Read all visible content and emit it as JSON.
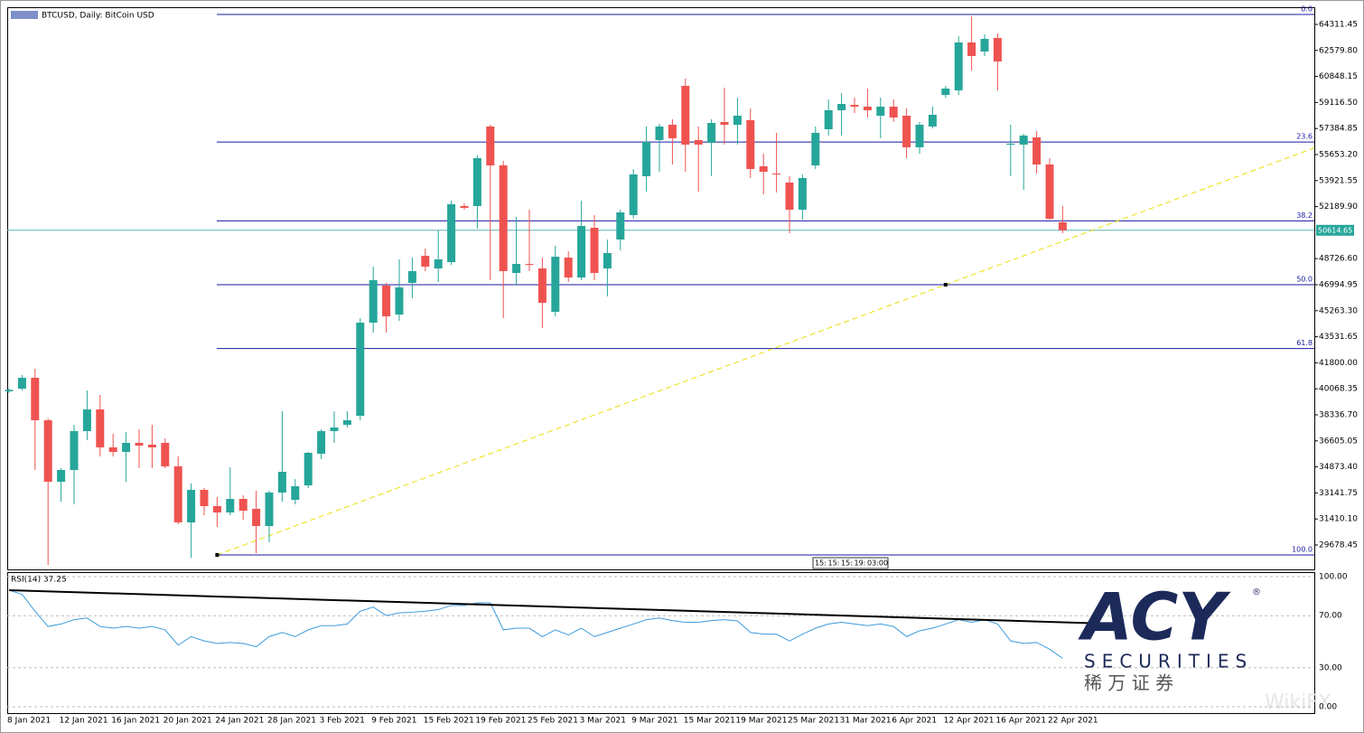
{
  "chart_data": {
    "type": "candlestick",
    "title": "BTCUSD, Daily: BitCoin USD",
    "categories": [
      "8 Jan 2021",
      null,
      null,
      null,
      "12 Jan 2021",
      null,
      null,
      null,
      "16 Jan 2021",
      null,
      null,
      null,
      "20 Jan 2021",
      null,
      null,
      null,
      "24 Jan 2021",
      null,
      null,
      null,
      "28 Jan 2021",
      null,
      null,
      null,
      "3 Feb 2021",
      null,
      null,
      null,
      "9 Feb 2021",
      null,
      null,
      null,
      "15 Feb 2021",
      null,
      null,
      null,
      "19 Feb 2021",
      null,
      null,
      null,
      "25 Feb 2021",
      null,
      null,
      null,
      "3 Mar 2021",
      null,
      null,
      null,
      "9 Mar 2021",
      null,
      null,
      null,
      "15 Mar 2021",
      null,
      null,
      null,
      "19 Mar 2021",
      null,
      null,
      null,
      "25 Mar 2021",
      null,
      null,
      null,
      "31 Mar 2021",
      null,
      null,
      null,
      "6 Apr 2021",
      null,
      null,
      null,
      "12 Apr 2021",
      null,
      null,
      null,
      "16 Apr 2021",
      null,
      null,
      null,
      "22 Apr 2021",
      null
    ],
    "open": [
      39900,
      40079,
      40801,
      37975,
      33886,
      34667,
      37253,
      38696,
      36171,
      35870,
      36471,
      36351,
      36471,
      34908,
      31180,
      33345,
      32262,
      31841,
      32743,
      32082,
      30939,
      33164,
      32683,
      33645,
      35750,
      37253,
      37674,
      38275,
      44469,
      46934,
      45010,
      47114,
      48918,
      48076,
      48497,
      52225,
      52225,
      57517,
      54931,
      47776,
      48377,
      48076,
      45190,
      48798,
      47475,
      50782,
      48076,
      50001,
      51624,
      54210,
      56615,
      57637,
      60223,
      56615,
      56434,
      57817,
      57637,
      57938,
      54871,
      54390,
      53789,
      51985,
      54931,
      57336,
      58599,
      58960,
      58840,
      58238,
      58840,
      58238,
      56134,
      57517,
      59621,
      59922,
      63109,
      62508,
      63410,
      56314,
      56314,
      56795,
      54991,
      51143
    ],
    "high": [
      40100,
      40981,
      41402,
      38100,
      34800,
      37674,
      39959,
      39658,
      37073,
      37193,
      37373,
      37674,
      36772,
      35569,
      33765,
      33465,
      32863,
      34848,
      32984,
      33284,
      33284,
      38576,
      34066,
      35870,
      37373,
      38576,
      38576,
      44769,
      48197,
      47114,
      48678,
      48798,
      49399,
      50602,
      52586,
      52406,
      55593,
      57637,
      55232,
      51504,
      51985,
      48798,
      49580,
      49219,
      52586,
      51624,
      50001,
      51985,
      54691,
      57517,
      57697,
      57998,
      60704,
      57517,
      57998,
      60103,
      59441,
      58719,
      55713,
      57096,
      54210,
      54330,
      57517,
      59321,
      59742,
      59441,
      60042,
      59441,
      59321,
      58719,
      57817,
      58840,
      60223,
      63530,
      64853,
      63650,
      63710,
      57637,
      57036,
      57216,
      55412,
      52225
    ],
    "low": [
      39800,
      39959,
      34667,
      28354,
      32563,
      32382,
      36652,
      35569,
      35569,
      33886,
      34788,
      34788,
      34788,
      31060,
      28835,
      31661,
      30879,
      31661,
      31360,
      29135,
      29857,
      32563,
      32382,
      33465,
      35400,
      36471,
      37500,
      37975,
      43807,
      43807,
      44589,
      46092,
      47896,
      47174,
      48300,
      51985,
      50722,
      47295,
      44769,
      46994,
      47896,
      44108,
      44889,
      47174,
      47295,
      47295,
      46212,
      49279,
      51400,
      53187,
      54510,
      54991,
      54510,
      53187,
      54210,
      56314,
      56314,
      54089,
      53007,
      53127,
      50421,
      51323,
      54691,
      56915,
      56915,
      58419,
      58118,
      56735,
      57817,
      55412,
      55713,
      57397,
      59441,
      59621,
      61245,
      62207,
      59922,
      54210,
      53308,
      54390,
      51323,
      50421
    ],
    "close": [
      40000,
      40801,
      37975,
      33886,
      34667,
      37253,
      38696,
      36171,
      35870,
      36471,
      36291,
      36171,
      34908,
      31180,
      33345,
      32262,
      31841,
      32743,
      31962,
      30939,
      33164,
      34547,
      33585,
      35810,
      37253,
      37494,
      37975,
      44469,
      47295,
      44889,
      46814,
      47896,
      48197,
      48678,
      52346,
      52105,
      55412,
      54931,
      47896,
      48377,
      48317,
      45791,
      48858,
      47475,
      50902,
      47776,
      49099,
      51804,
      54330,
      56495,
      57517,
      56735,
      56314,
      56314,
      57757,
      57637,
      58238,
      54691,
      54510,
      54330,
      51985,
      54089,
      57096,
      58599,
      59020,
      58840,
      58599,
      58840,
      58118,
      56134,
      57637,
      58298,
      60042,
      63109,
      62207,
      63350,
      61846,
      56380,
      56915,
      54991,
      51384,
      50614.65
    ],
    "up_color": "#26a69a",
    "down_color": "#ef5350",
    "ylim": [
      28053,
      65454
    ],
    "yticks": [
      64311.45,
      {
        "value": 62579.8,
        "label": "62579.80"
      },
      60848.15,
      {
        "value": 59116.5,
        "label": "59116.50"
      },
      57384.85,
      {
        "value": 55653.2,
        "label": "55653.20"
      },
      53921.55,
      {
        "value": 52189.9,
        "label": "52189.90"
      },
      {
        "value": 48726.6,
        "label": "48726.60"
      },
      46994.95,
      {
        "value": 45263.3,
        "label": "45263.30"
      },
      43531.65,
      {
        "value": 41800,
        "label": "41800.00"
      },
      40068.35,
      {
        "value": 38336.7,
        "label": "38336.70"
      },
      36605.05,
      {
        "value": 34873.4,
        "label": "34873.40"
      },
      33141.75,
      {
        "value": 31410.1,
        "label": "31410.10"
      },
      29678.45
    ],
    "current_price": 50614.65,
    "fib_levels": [
      {
        "label": "0.0",
        "price": 64973
      },
      {
        "label": "23.6",
        "price": 56487
      },
      {
        "label": "38.2",
        "price": 51237
      },
      {
        "label": "50.0",
        "price": 46994
      },
      {
        "label": "61.8",
        "price": 42751
      },
      {
        "label": "100.0",
        "price": 29015
      }
    ],
    "trendline": {
      "start": [
        16,
        29015
      ],
      "through": [
        72,
        46994
      ]
    },
    "time_labels": [
      "15:",
      "15:",
      "15:",
      "19:",
      "03:00"
    ],
    "rsi": {
      "label": "RSI(14) 37.25",
      "ylim": [
        0,
        100
      ],
      "yticks": [
        {
          "value": 100,
          "label": "100.00"
        },
        {
          "value": 70,
          "label": "70.00"
        },
        {
          "value": 30,
          "label": "30.00"
        },
        {
          "value": 0,
          "label": "0.00"
        }
      ],
      "values": [
        89.6,
        86.4,
        73.4,
        61.7,
        63.6,
        66.9,
        68.2,
        61.7,
        60.4,
        61.7,
        60.4,
        61.7,
        59.1,
        47.4,
        53.9,
        50.6,
        48.7,
        49.4,
        48.7,
        46.1,
        53.9,
        57.1,
        53.9,
        59.1,
        62.3,
        62.3,
        63.6,
        73.4,
        76.6,
        70.1,
        72.1,
        72.7,
        73.4,
        74.7,
        77.9,
        77.9,
        79.9,
        79.9,
        59.1,
        60.4,
        60.4,
        53.9,
        59.1,
        55.2,
        60.4,
        53.9,
        57.1,
        60.4,
        63.6,
        66.9,
        68.2,
        66.2,
        64.9,
        64.9,
        66.2,
        66.9,
        66.0,
        57.1,
        55.8,
        55.8,
        50.6,
        55.8,
        60.4,
        63.6,
        64.9,
        63.6,
        62.3,
        63.6,
        61.7,
        53.9,
        58.4,
        60.4,
        63.6,
        66.9,
        64.9,
        66.9,
        63.6,
        50.6,
        48.7,
        49.4,
        44.2,
        37.25
      ],
      "color": "#3d9bdc",
      "trendline": {
        "start": [
          0,
          89.6
        ],
        "end": [
          83,
          64.3
        ]
      }
    }
  },
  "logo": {
    "brand": "ACY",
    "mark": "®",
    "sub": "SECURITIES",
    "cn": "稀 万 证 券"
  },
  "watermark": "WikiFX"
}
